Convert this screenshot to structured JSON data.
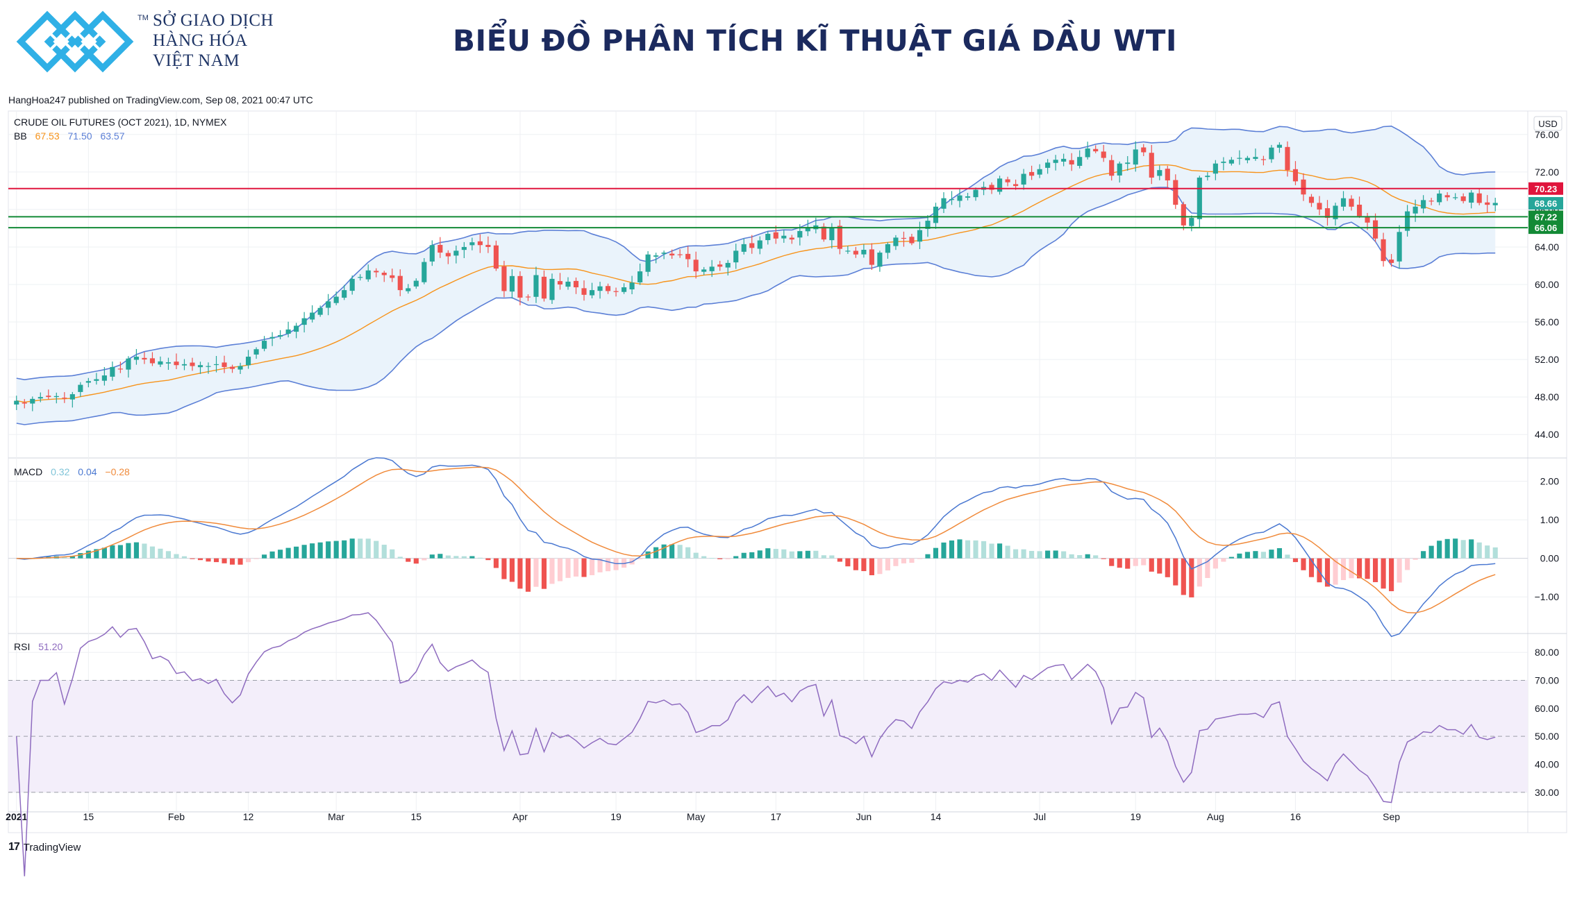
{
  "header": {
    "brand_lines": [
      "SỞ GIAO DỊCH",
      "HÀNG HÓA",
      "VIỆT NAM"
    ],
    "brand_tm": "TM",
    "title": "BIỂU ĐỒ PHÂN TÍCH KĨ THUẬT GIÁ DẦU WTI"
  },
  "publish_line": "HangHoa247 published on TradingView.com, Sep 08, 2021 00:47 UTC",
  "footer": {
    "tradingview_label": "TradingView",
    "tradingview_mark": "17"
  },
  "colors": {
    "up": "#26a69a",
    "down": "#ef5350",
    "bb_basis": "#f7931a",
    "bb_band": "#5b7fd6",
    "bb_fill": "#eaf3fb",
    "resistance": "#e0143c",
    "support": "#138a36",
    "macd_line": "#4a78d1",
    "signal_line": "#f08a3a",
    "hist_up_strong": "#26a69a",
    "hist_up_weak": "#b2dfdb",
    "hist_down_strong": "#ef5350",
    "hist_down_weak": "#ffcdd2",
    "rsi_line": "#8e6bbf",
    "rsi_fill": "#f3eefa",
    "grid": "#eef0f3"
  },
  "chart_data": [
    {
      "type": "candlestick",
      "title": "CRUDE OIL FUTURES (OCT 2021), 1D, NYMEX",
      "axis_unit": "USD",
      "ylim": [
        41.5,
        78.5
      ],
      "y_ticks": [
        "76.00",
        "72.00",
        "68.00",
        "64.00",
        "60.00",
        "56.00",
        "52.00",
        "48.00",
        "44.00"
      ],
      "x_ticks": [
        "2021",
        "15",
        "Feb",
        "12",
        "Mar",
        "15",
        "Apr",
        "19",
        "May",
        "17",
        "Jun",
        "14",
        "Jul",
        "19",
        "Aug",
        "16",
        "Sep"
      ],
      "x_tick_dates": [
        "2021-01-04",
        "2021-01-15",
        "2021-02-01",
        "2021-02-12",
        "2021-03-01",
        "2021-03-15",
        "2021-04-01",
        "2021-04-19",
        "2021-05-03",
        "2021-05-17",
        "2021-06-01",
        "2021-06-14",
        "2021-07-01",
        "2021-07-19",
        "2021-08-02",
        "2021-08-16",
        "2021-09-01"
      ],
      "legend": {
        "bb_label": "BB",
        "bb_values": [
          "67.53",
          "71.50",
          "63.57"
        ]
      },
      "price_labels": [
        {
          "value": 70.23,
          "text": "70.23",
          "color": "#e0143c"
        },
        {
          "value": 68.66,
          "text": "68.66",
          "color": "#26a69a"
        },
        {
          "value": 67.22,
          "text": "67.22",
          "color": "#138a36"
        },
        {
          "value": 66.06,
          "text": "66.06",
          "color": "#138a36"
        }
      ],
      "horizontal_lines": [
        {
          "value": 70.23,
          "role": "resistance"
        },
        {
          "value": 67.22,
          "role": "support"
        },
        {
          "value": 66.06,
          "role": "support"
        }
      ],
      "close": [
        47.6,
        47.3,
        47.8,
        48.0,
        48.0,
        48.1,
        47.9,
        48.3,
        49.3,
        49.7,
        49.9,
        50.3,
        51.2,
        51.0,
        52.1,
        52.3,
        52.0,
        51.6,
        51.8,
        51.7,
        51.4,
        51.5,
        51.3,
        51.4,
        51.3,
        51.5,
        51.2,
        51.0,
        51.3,
        52.3,
        53.1,
        54.0,
        54.4,
        54.6,
        55.2,
        55.6,
        56.4,
        57.0,
        57.5,
        58.2,
        58.7,
        59.4,
        60.6,
        60.8,
        61.5,
        61.3,
        61.0,
        60.7,
        59.4,
        59.6,
        60.4,
        62.4,
        64.2,
        63.4,
        63.0,
        63.6,
        64.0,
        64.5,
        64.2,
        64.0,
        61.7,
        59.3,
        60.9,
        58.6,
        58.7,
        61.0,
        58.5,
        60.6,
        60.0,
        60.3,
        59.7,
        58.9,
        59.4,
        59.8,
        59.3,
        59.2,
        59.7,
        60.2,
        61.4,
        63.2,
        63.1,
        63.4,
        63.1,
        63.2,
        62.7,
        61.4,
        61.6,
        61.9,
        61.9,
        62.3,
        63.6,
        64.3,
        63.9,
        64.7,
        65.4,
        64.9,
        65.2,
        64.8,
        65.7,
        66.1,
        66.3,
        64.8,
        66.1,
        63.8,
        63.6,
        63.2,
        63.7,
        62.1,
        63.4,
        64.3,
        65.0,
        64.9,
        64.4,
        65.8,
        66.8,
        68.3,
        69.2,
        69.1,
        69.5,
        69.4,
        70.1,
        70.4,
        70.1,
        71.3,
        70.9,
        70.5,
        71.8,
        71.6,
        72.3,
        73.0,
        73.3,
        73.4,
        72.8,
        73.6,
        74.5,
        74.2,
        73.5,
        71.6,
        72.9,
        73.0,
        74.4,
        74.1,
        71.4,
        72.2,
        71.1,
        68.5,
        66.3,
        67.1,
        71.4,
        71.6,
        72.9,
        73.1,
        73.3,
        73.5,
        73.5,
        73.6,
        73.3,
        74.6,
        74.9,
        72.2,
        71.0,
        69.6,
        68.7,
        68.0,
        67.1,
        68.4,
        69.2,
        68.3,
        67.3,
        66.6,
        64.9,
        62.5,
        62.3,
        65.6,
        67.8,
        68.3,
        69.0,
        68.9,
        69.7,
        69.3,
        69.3,
        68.9,
        69.8,
        68.7,
        68.5,
        68.7
      ],
      "bb_basis_close_window": 20,
      "bb_stddev": 2
    },
    {
      "type": "line+histogram",
      "title": "MACD",
      "legend_values": [
        "0.32",
        "0.04",
        "−0.28"
      ],
      "ylim": [
        -1.95,
        2.55
      ],
      "y_ticks": [
        "2.00",
        "1.00",
        "0.00",
        "−1.00"
      ],
      "series": [
        {
          "name": "MACD"
        },
        {
          "name": "Signal"
        },
        {
          "name": "Histogram"
        }
      ]
    },
    {
      "type": "line",
      "title": "RSI",
      "legend_values": [
        "51.20"
      ],
      "ylim": [
        25,
        86
      ],
      "y_ticks": [
        "80.00",
        "70.00",
        "60.00",
        "50.00",
        "40.00",
        "30.00"
      ],
      "band": [
        30,
        70
      ],
      "midline": 50
    }
  ]
}
